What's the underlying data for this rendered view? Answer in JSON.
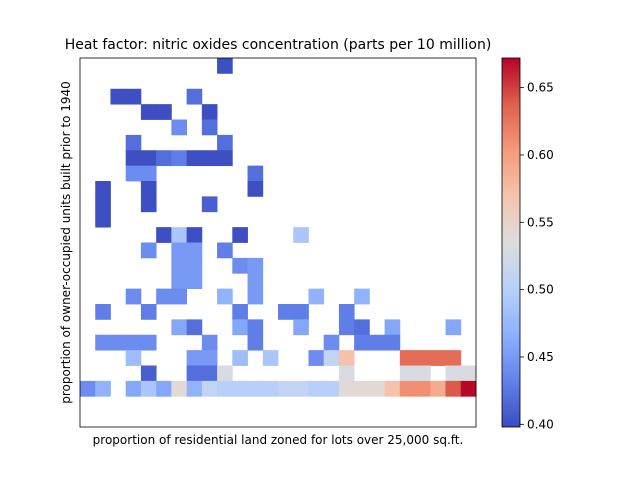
{
  "chart_data": {
    "type": "heatmap",
    "title": "Heat factor: nitric oxides concentration (parts per 10 million)",
    "xlabel": "proportion of residential land zoned for lots over 25,000 sq.ft.",
    "ylabel": "proportion of owner-occupied units built prior to 1940",
    "colormap": "coolwarm",
    "vmin": 0.398,
    "vmax": 0.672,
    "colorbar_ticks": [
      0.4,
      0.45,
      0.5,
      0.55,
      0.6,
      0.65
    ],
    "grid_size": [
      25,
      23
    ],
    "cells": [
      [
        9,
        0,
        0.4
      ],
      [
        2,
        2,
        0.4
      ],
      [
        3,
        2,
        0.4
      ],
      [
        7,
        2,
        0.42
      ],
      [
        4,
        3,
        0.4
      ],
      [
        5,
        3,
        0.4
      ],
      [
        8,
        3,
        0.4
      ],
      [
        6,
        4,
        0.44
      ],
      [
        8,
        4,
        0.42
      ],
      [
        3,
        5,
        0.42
      ],
      [
        9,
        5,
        0.42
      ],
      [
        3,
        6,
        0.4
      ],
      [
        4,
        6,
        0.4
      ],
      [
        5,
        6,
        0.42
      ],
      [
        6,
        6,
        0.43
      ],
      [
        7,
        6,
        0.4
      ],
      [
        8,
        6,
        0.4
      ],
      [
        9,
        6,
        0.4
      ],
      [
        3,
        7,
        0.44
      ],
      [
        4,
        7,
        0.44
      ],
      [
        11,
        7,
        0.42
      ],
      [
        1,
        8,
        0.4
      ],
      [
        4,
        8,
        0.4
      ],
      [
        11,
        8,
        0.4
      ],
      [
        1,
        9,
        0.4
      ],
      [
        4,
        9,
        0.4
      ],
      [
        8,
        9,
        0.41
      ],
      [
        1,
        10,
        0.4
      ],
      [
        5,
        11,
        0.4
      ],
      [
        6,
        11,
        0.49
      ],
      [
        7,
        11,
        0.4
      ],
      [
        10,
        11,
        0.4
      ],
      [
        14,
        11,
        0.49
      ],
      [
        4,
        12,
        0.44
      ],
      [
        6,
        12,
        0.45
      ],
      [
        7,
        12,
        0.45
      ],
      [
        9,
        12,
        0.43
      ],
      [
        6,
        13,
        0.45
      ],
      [
        7,
        13,
        0.45
      ],
      [
        10,
        13,
        0.44
      ],
      [
        11,
        13,
        0.45
      ],
      [
        6,
        14,
        0.45
      ],
      [
        7,
        14,
        0.45
      ],
      [
        11,
        14,
        0.45
      ],
      [
        3,
        15,
        0.44
      ],
      [
        5,
        15,
        0.44
      ],
      [
        6,
        15,
        0.44
      ],
      [
        9,
        15,
        0.47
      ],
      [
        11,
        15,
        0.45
      ],
      [
        15,
        15,
        0.47
      ],
      [
        18,
        15,
        0.47
      ],
      [
        1,
        16,
        0.43
      ],
      [
        4,
        16,
        0.43
      ],
      [
        10,
        16,
        0.43
      ],
      [
        13,
        16,
        0.43
      ],
      [
        14,
        16,
        0.43
      ],
      [
        17,
        16,
        0.43
      ],
      [
        6,
        17,
        0.46
      ],
      [
        7,
        17,
        0.42
      ],
      [
        10,
        17,
        0.46
      ],
      [
        11,
        17,
        0.43
      ],
      [
        14,
        17,
        0.46
      ],
      [
        17,
        17,
        0.43
      ],
      [
        18,
        17,
        0.42
      ],
      [
        20,
        17,
        0.46
      ],
      [
        24,
        17,
        0.46
      ],
      [
        1,
        18,
        0.44
      ],
      [
        2,
        18,
        0.44
      ],
      [
        3,
        18,
        0.44
      ],
      [
        4,
        18,
        0.44
      ],
      [
        8,
        18,
        0.44
      ],
      [
        11,
        18,
        0.43
      ],
      [
        16,
        18,
        0.44
      ],
      [
        18,
        18,
        0.43
      ],
      [
        19,
        18,
        0.43
      ],
      [
        20,
        18,
        0.43
      ],
      [
        3,
        19,
        0.48
      ],
      [
        7,
        19,
        0.45
      ],
      [
        8,
        19,
        0.45
      ],
      [
        10,
        19,
        0.48
      ],
      [
        12,
        19,
        0.49
      ],
      [
        15,
        19,
        0.44
      ],
      [
        16,
        19,
        0.51
      ],
      [
        17,
        19,
        0.57
      ],
      [
        21,
        19,
        0.63
      ],
      [
        22,
        19,
        0.63
      ],
      [
        23,
        19,
        0.63
      ],
      [
        24,
        19,
        0.63
      ],
      [
        4,
        20,
        0.41
      ],
      [
        7,
        20,
        0.42
      ],
      [
        8,
        20,
        0.42
      ],
      [
        9,
        20,
        0.53
      ],
      [
        17,
        20,
        0.53
      ],
      [
        21,
        20,
        0.53
      ],
      [
        22,
        20,
        0.53
      ],
      [
        24,
        20,
        0.53
      ],
      [
        25,
        20,
        0.53
      ],
      [
        0,
        21,
        0.44
      ],
      [
        1,
        21,
        0.47
      ],
      [
        3,
        21,
        0.46
      ],
      [
        4,
        21,
        0.49
      ],
      [
        5,
        21,
        0.46
      ],
      [
        6,
        21,
        0.54
      ],
      [
        7,
        21,
        0.47
      ],
      [
        8,
        21,
        0.51
      ],
      [
        9,
        21,
        0.5
      ],
      [
        10,
        21,
        0.5
      ],
      [
        11,
        21,
        0.5
      ],
      [
        12,
        21,
        0.5
      ],
      [
        13,
        21,
        0.51
      ],
      [
        14,
        21,
        0.51
      ],
      [
        15,
        21,
        0.5
      ],
      [
        16,
        21,
        0.5
      ],
      [
        17,
        21,
        0.54
      ],
      [
        18,
        21,
        0.54
      ],
      [
        19,
        21,
        0.54
      ],
      [
        20,
        21,
        0.57
      ],
      [
        21,
        21,
        0.61
      ],
      [
        22,
        21,
        0.61
      ],
      [
        23,
        21,
        0.59
      ],
      [
        24,
        21,
        0.64
      ],
      [
        25,
        21,
        0.67
      ]
    ]
  }
}
